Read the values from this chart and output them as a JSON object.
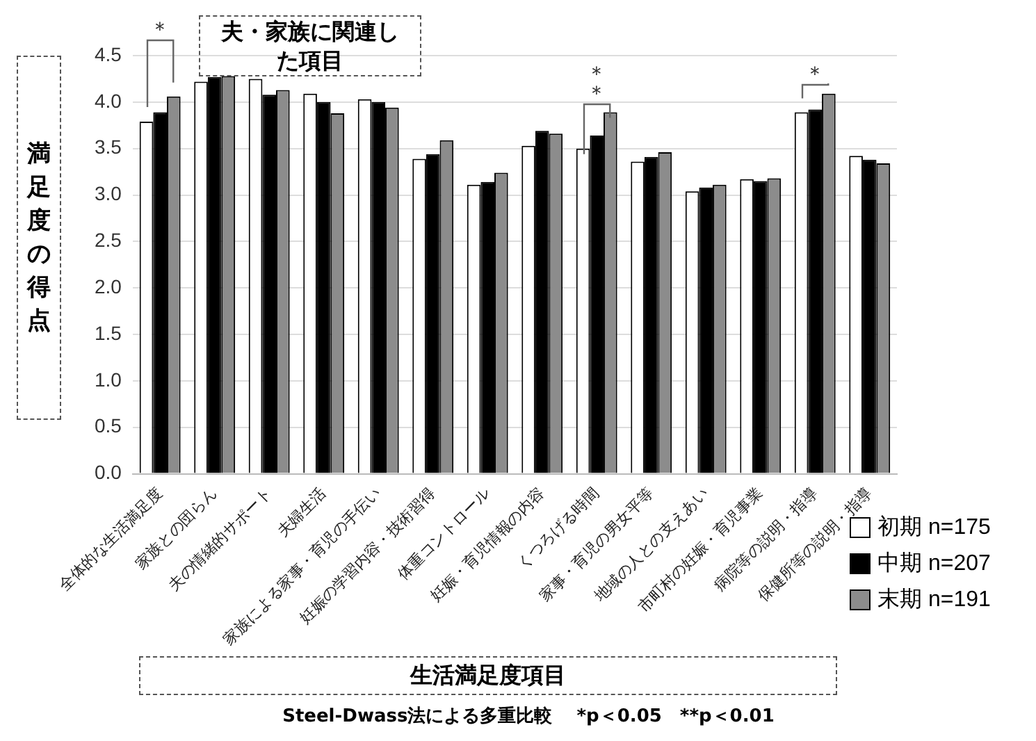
{
  "chart_data": {
    "type": "bar",
    "categories": [
      "全体的な生活満足度",
      "家族との団らん",
      "夫の情緒的サポート",
      "夫婦生活",
      "家族による家事・育児の手伝い",
      "妊娠の学習内容・技術習得",
      "体重コントロール",
      "妊娠・育児情報の内容",
      "くつろげる時間",
      "家事・育児の男女平等",
      "地域の人との支えあい",
      "市町村の妊娠・育児事業",
      "病院等の説明・指導",
      "保健所等の説明・指導"
    ],
    "series": [
      {
        "name": "初期 n=175",
        "color": "#ffffff",
        "values": [
          3.79,
          4.22,
          4.25,
          4.09,
          4.03,
          3.39,
          3.11,
          3.53,
          3.5,
          3.36,
          3.04,
          3.17,
          3.89,
          3.42
        ]
      },
      {
        "name": "中期 n=207",
        "color": "#000000",
        "values": [
          3.89,
          4.27,
          4.08,
          4.0,
          4.0,
          3.44,
          3.14,
          3.69,
          3.64,
          3.41,
          3.08,
          3.15,
          3.92,
          3.38
        ]
      },
      {
        "name": "末期 n=191",
        "color": "#8c8c8c",
        "values": [
          4.06,
          4.28,
          4.13,
          3.88,
          3.94,
          3.59,
          3.24,
          3.66,
          3.89,
          3.46,
          3.11,
          3.18,
          4.09,
          3.34
        ]
      }
    ],
    "xlabel": "生活満足度項目",
    "ylabel": "満足度の得点",
    "ylim": [
      0,
      4.5
    ],
    "yticks": [
      {
        "value": 0,
        "label": "0.0"
      },
      0.5,
      {
        "value": 1,
        "label": "1.0"
      },
      1.5,
      {
        "value": 2,
        "label": "2.0"
      },
      2.5,
      {
        "value": 3,
        "label": "3.0"
      },
      3.5,
      {
        "value": 4,
        "label": "4.0"
      },
      4.5
    ],
    "grid": "y",
    "legend": "bottom right",
    "annotations": [
      "＊",
      "＊＊",
      "＊",
      "夫・家族に関連した項目",
      "Steel-Dwass法による多重比較　 *p＜0.05　**p＜0.01"
    ]
  }
}
